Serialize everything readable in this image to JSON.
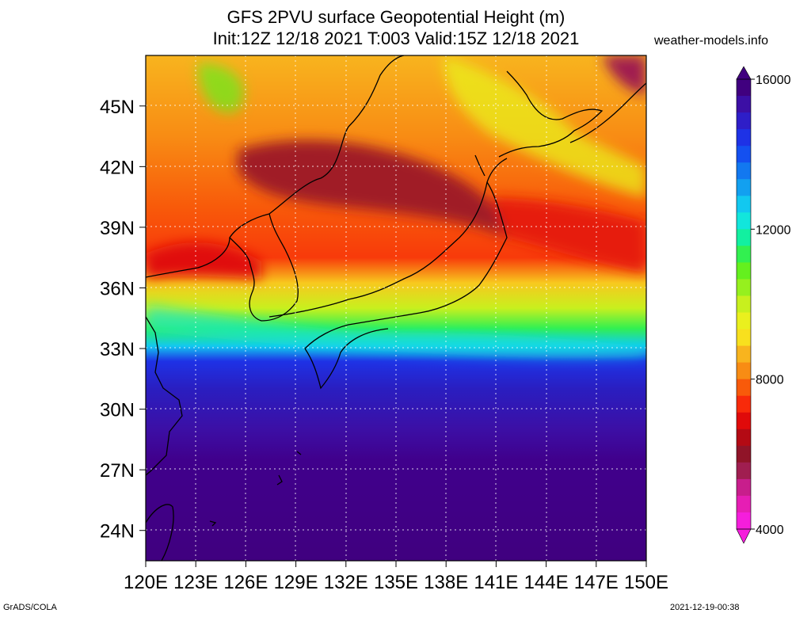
{
  "title": {
    "line1": "GFS 2PVU surface Geopotential Height (m)",
    "line2": "Init:12Z 12/18 2021 T:003 Valid:15Z 12/18 2021"
  },
  "site": "weather-models.info",
  "footer": {
    "left": "GrADS/COLA",
    "right": "2021-12-19-00:38"
  },
  "map": {
    "lon_labels": [
      "120E",
      "123E",
      "126E",
      "129E",
      "132E",
      "135E",
      "138E",
      "141E",
      "144E",
      "147E",
      "150E"
    ],
    "lat_labels": [
      "45N",
      "42N",
      "39N",
      "36N",
      "33N",
      "30N",
      "27N",
      "24N"
    ],
    "lon_range": [
      120,
      150
    ],
    "lat_range": [
      22.5,
      47.5
    ]
  },
  "colorbar": {
    "labels": [
      "16000",
      "12000",
      "8000",
      "4000"
    ],
    "colors": [
      "#40007f",
      "#3c0fa5",
      "#2e1ec8",
      "#1e32e6",
      "#1450f0",
      "#1278f0",
      "#12a0f0",
      "#12c8f0",
      "#12e6dc",
      "#12f0a0",
      "#32f050",
      "#64f01e",
      "#96f01e",
      "#c8f01e",
      "#eaf01e",
      "#f8e01e",
      "#f8b41e",
      "#f88c14",
      "#f85a0a",
      "#f82a0a",
      "#e00a0a",
      "#b40a14",
      "#901428",
      "#a01e50",
      "#c81e8c",
      "#e61eb4",
      "#f51edc"
    ],
    "range": [
      4000,
      16000
    ]
  }
}
